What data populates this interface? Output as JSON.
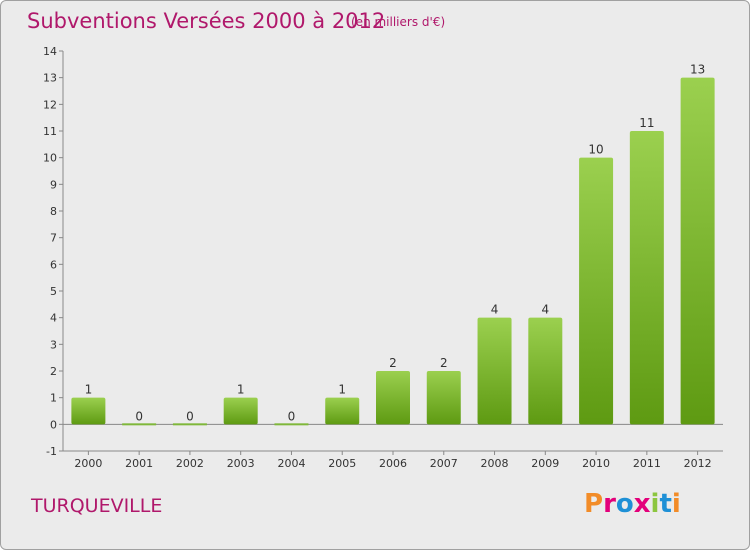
{
  "header": {
    "title": "Subventions Versées 2000 à 2012",
    "unit": "(en milliers d'€)"
  },
  "footer": {
    "commune": "TURQUEVILLE",
    "logo_text": "Proxiti",
    "logo_colors": [
      "#f28c28",
      "#e3007a",
      "#1e90d6",
      "#e3007a",
      "#8cc63f",
      "#1e90d6",
      "#f28c28"
    ]
  },
  "colors": {
    "accent": "#b0186b",
    "bar_light": "#9bd04f",
    "bar_dark": "#5e9a12",
    "background": "#ebebeb"
  },
  "chart_data": {
    "type": "bar",
    "categories": [
      "2000",
      "2001",
      "2002",
      "2003",
      "2004",
      "2005",
      "2006",
      "2007",
      "2008",
      "2009",
      "2010",
      "2011",
      "2012"
    ],
    "values": [
      1,
      0,
      0,
      1,
      0,
      1,
      2,
      2,
      4,
      4,
      10,
      11,
      13
    ],
    "ylim": [
      -1,
      14
    ],
    "yticks": [
      -1,
      0,
      1,
      2,
      3,
      4,
      5,
      6,
      7,
      8,
      9,
      10,
      11,
      12,
      13,
      14
    ],
    "grid": false
  }
}
